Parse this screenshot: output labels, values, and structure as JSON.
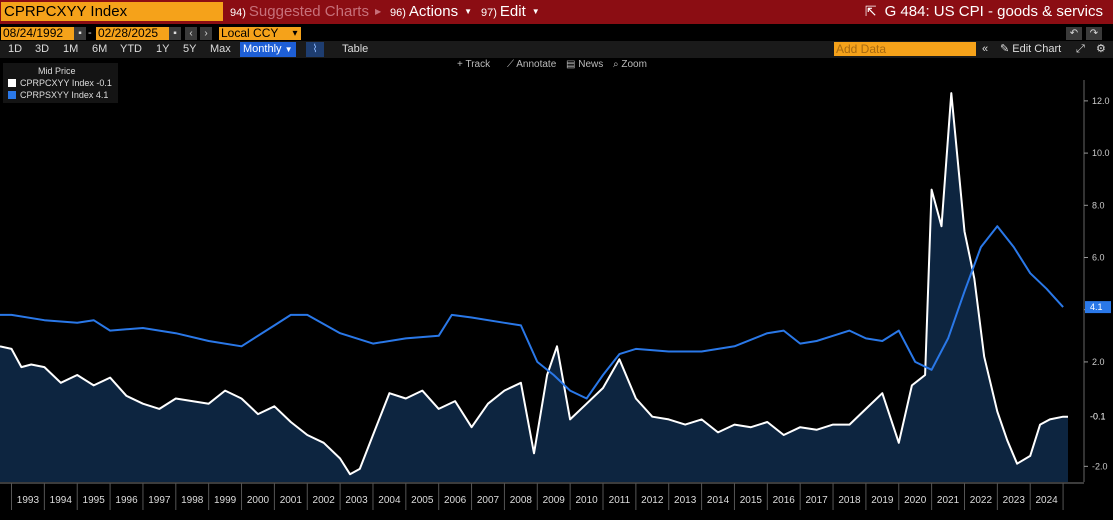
{
  "header": {
    "ticker": "CPRPCXYY Index",
    "menu_suggested": "Suggested Charts",
    "menu_suggested_num": "94)",
    "menu_actions": "Actions",
    "menu_actions_num": "96)",
    "menu_edit": "Edit",
    "menu_edit_num": "97)",
    "chart_title": "G 484: US CPI - goods & servics"
  },
  "controls": {
    "start_date": "08/24/1992",
    "end_date": "02/28/2025",
    "currency": "Local CCY",
    "ranges": [
      "1D",
      "3D",
      "1M",
      "6M",
      "YTD",
      "1Y",
      "5Y",
      "Max"
    ],
    "period": "Monthly",
    "table_label": "Table",
    "add_data_placeholder": "Add Data",
    "edit_chart_label": "Edit Chart"
  },
  "toolbar": {
    "track": "Track",
    "annotate": "Annotate",
    "news": "News",
    "zoom": "Zoom"
  },
  "colors": {
    "goods": "#ffffff",
    "services": "#2a78e8",
    "fill": "#0d2540",
    "accent": "#f5a21a"
  },
  "chart_data": {
    "type": "line",
    "legend_title": "Mid Price",
    "legend": [
      {
        "name": "CPRPCXYY Index",
        "last": "-0.1"
      },
      {
        "name": "CPRPSXYY Index",
        "last": "4.1"
      }
    ],
    "ylim": [
      -2.6,
      12.8
    ],
    "y_ticks": [
      "12.0",
      "10.0",
      "8.0",
      "6.0",
      "4.0",
      "2.0",
      "-2.0"
    ],
    "last_labels": {
      "goods": "-0.1",
      "services": "4.1"
    },
    "x_ticks": [
      "1993",
      "1994",
      "1995",
      "1996",
      "1997",
      "1998",
      "1999",
      "2000",
      "2001",
      "2002",
      "2003",
      "2004",
      "2005",
      "2006",
      "2007",
      "2008",
      "2009",
      "2010",
      "2011",
      "2012",
      "2013",
      "2014",
      "2015",
      "2016",
      "2017",
      "2018",
      "2019",
      "2020",
      "2021",
      "2022",
      "2023",
      "2024"
    ],
    "x_range": [
      1992.65,
      2025.15
    ],
    "series": [
      {
        "name": "CPRPCXYY Index",
        "area": true,
        "x": [
          1992.65,
          1993.0,
          1993.3,
          1993.6,
          1994.0,
          1994.5,
          1995.0,
          1995.5,
          1996.0,
          1996.5,
          1997.0,
          1997.5,
          1998.0,
          1998.5,
          1999.0,
          1999.5,
          2000.0,
          2000.5,
          2001.0,
          2001.5,
          2002.0,
          2002.5,
          2003.0,
          2003.3,
          2003.6,
          2004.0,
          2004.5,
          2005.0,
          2005.5,
          2006.0,
          2006.5,
          2007.0,
          2007.5,
          2008.0,
          2008.5,
          2008.9,
          2009.3,
          2009.6,
          2010.0,
          2010.5,
          2011.0,
          2011.5,
          2012.0,
          2012.5,
          2013.0,
          2013.5,
          2014.0,
          2014.5,
          2015.0,
          2015.5,
          2016.0,
          2016.5,
          2017.0,
          2017.5,
          2018.0,
          2018.5,
          2019.0,
          2019.5,
          2020.0,
          2020.4,
          2020.8,
          2021.0,
          2021.3,
          2021.6,
          2022.0,
          2022.3,
          2022.6,
          2023.0,
          2023.3,
          2023.6,
          2024.0,
          2024.3,
          2024.6,
          2025.0,
          2025.15
        ],
        "y": [
          2.6,
          2.5,
          1.8,
          1.9,
          1.8,
          1.2,
          1.5,
          1.1,
          1.4,
          0.7,
          0.4,
          0.2,
          0.6,
          0.5,
          0.4,
          0.9,
          0.6,
          0.0,
          0.3,
          -0.3,
          -0.8,
          -1.1,
          -1.7,
          -2.3,
          -2.1,
          -0.8,
          0.8,
          0.6,
          0.9,
          0.2,
          0.5,
          -0.5,
          0.4,
          0.9,
          1.2,
          -1.5,
          1.5,
          2.6,
          -0.2,
          0.4,
          1.0,
          2.1,
          0.6,
          -0.1,
          -0.2,
          -0.4,
          -0.2,
          -0.7,
          -0.4,
          -0.5,
          -0.3,
          -0.8,
          -0.5,
          -0.6,
          -0.4,
          -0.4,
          0.2,
          0.8,
          -1.1,
          1.1,
          1.5,
          8.6,
          7.2,
          12.3,
          7.0,
          5.2,
          2.2,
          0.1,
          -1.0,
          -1.9,
          -1.6,
          -0.4,
          -0.2,
          -0.1,
          -0.1
        ]
      },
      {
        "name": "CPRPSXYY Index",
        "area": false,
        "x": [
          1992.65,
          1993.0,
          1994.0,
          1995.0,
          1995.5,
          1996.0,
          1997.0,
          1998.0,
          1999.0,
          2000.0,
          2001.0,
          2001.5,
          2002.0,
          2003.0,
          2004.0,
          2005.0,
          2006.0,
          2006.4,
          2007.0,
          2008.0,
          2008.5,
          2009.0,
          2009.5,
          2010.0,
          2010.5,
          2011.0,
          2011.5,
          2012.0,
          2013.0,
          2014.0,
          2015.0,
          2016.0,
          2016.5,
          2017.0,
          2017.5,
          2018.0,
          2018.5,
          2019.0,
          2019.5,
          2020.0,
          2020.5,
          2021.0,
          2021.5,
          2022.0,
          2022.5,
          2023.0,
          2023.5,
          2024.0,
          2024.5,
          2025.0
        ],
        "y": [
          3.8,
          3.8,
          3.6,
          3.5,
          3.6,
          3.2,
          3.3,
          3.1,
          2.8,
          2.6,
          3.4,
          3.8,
          3.8,
          3.1,
          2.7,
          2.9,
          3.0,
          3.8,
          3.7,
          3.5,
          3.4,
          2.0,
          1.5,
          0.9,
          0.6,
          1.5,
          2.3,
          2.5,
          2.4,
          2.4,
          2.6,
          3.1,
          3.2,
          2.7,
          2.8,
          3.0,
          3.2,
          2.9,
          2.8,
          3.2,
          2.0,
          1.7,
          2.9,
          4.7,
          6.4,
          7.2,
          6.4,
          5.4,
          4.8,
          4.1
        ]
      }
    ]
  }
}
